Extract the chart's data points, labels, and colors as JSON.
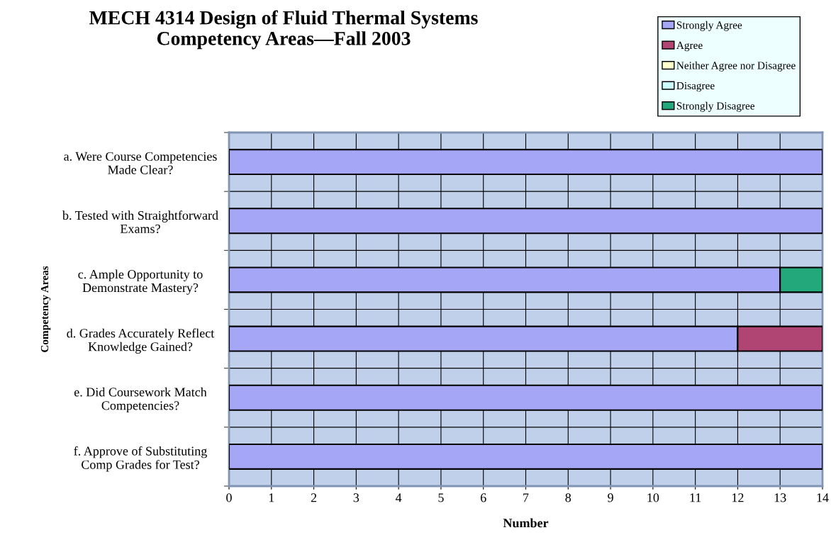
{
  "chart_data": {
    "type": "bar",
    "orientation": "horizontal",
    "stacked": true,
    "title": "MECH 4314 Design of Fluid Thermal Systems\nCompetency Areas—Fall 2003",
    "xlabel": "Number",
    "ylabel": "Competency Areas",
    "categories": [
      "a. Were Course Competencies\nMade Clear?",
      "b. Tested with Straightforward\nExams?",
      "c. Ample Opportunity to\nDemonstrate Mastery?",
      "d. Grades Accurately Reflect\nKnowledge Gained?",
      "e. Did Coursework Match\nCompetencies?",
      "f. Approve of Substituting\nComp Grades for Test?"
    ],
    "series": [
      {
        "name": "Strongly Agree",
        "color": "#a6a6f7",
        "values": [
          14,
          14,
          13,
          12,
          14,
          14
        ]
      },
      {
        "name": "Agree",
        "color": "#b04472",
        "values": [
          0,
          0,
          0,
          2,
          0,
          0
        ]
      },
      {
        "name": "Neither Agree nor Disagree",
        "color": "#ffffcc",
        "values": [
          0,
          0,
          0,
          0,
          0,
          0
        ]
      },
      {
        "name": "Disagree",
        "color": "#ccffff",
        "values": [
          0,
          0,
          0,
          0,
          0,
          0
        ]
      },
      {
        "name": "Strongly Disagree",
        "color": "#22a87a",
        "values": [
          0,
          0,
          1,
          0,
          0,
          0
        ]
      }
    ],
    "xlim": [
      0,
      14
    ],
    "xticks": [
      0,
      1,
      2,
      3,
      4,
      5,
      6,
      7,
      8,
      9,
      10,
      11,
      12,
      13,
      14
    ],
    "grid": true,
    "legend": "top right"
  }
}
